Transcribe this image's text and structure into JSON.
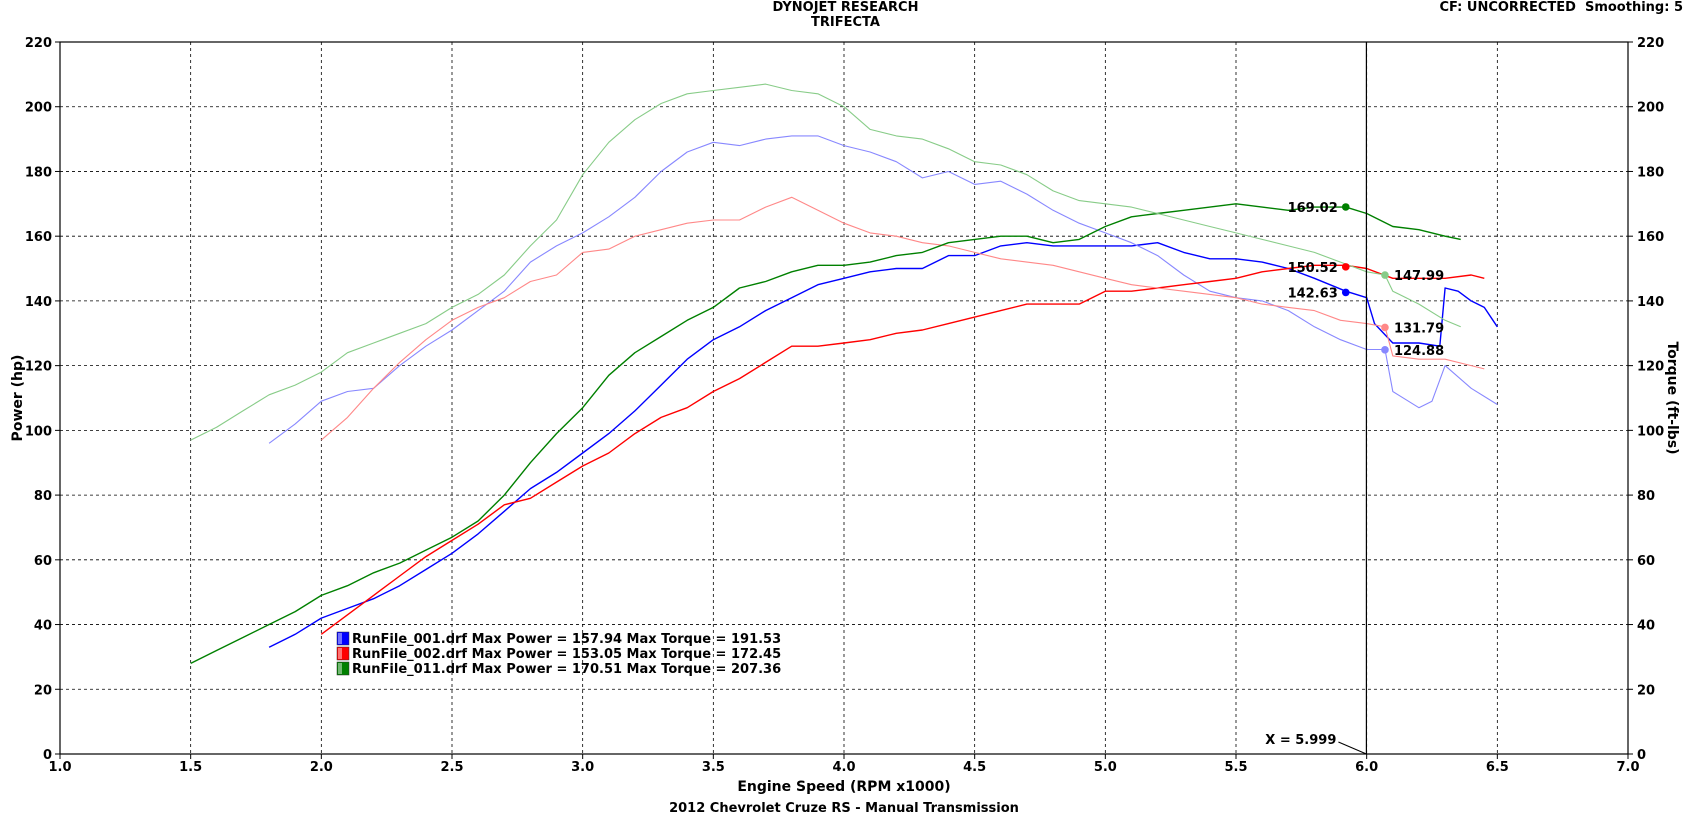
{
  "header": {
    "company": "DYNOJET RESEARCH",
    "product": "TRIFECTA",
    "settings": "CF: UNCORRECTED  Smoothing: 5"
  },
  "footer": {
    "vehicle": "2012 Chevrolet Cruze RS - Manual Transmission"
  },
  "chart_data": {
    "type": "line",
    "title": "",
    "xlabel": "Engine Speed (RPM x1000)",
    "ylabel": "Power (hp)",
    "y2label": "Torque (ft-lbs)",
    "xlim": [
      1.0,
      7.0
    ],
    "ylim": [
      0,
      220
    ],
    "y2lim": [
      0,
      220
    ],
    "x_ticks": [
      "1.0",
      "1.5",
      "2.0",
      "2.5",
      "3.0",
      "3.5",
      "4.0",
      "4.5",
      "5.0",
      "5.5",
      "6.0",
      "6.5",
      "7.0"
    ],
    "y_ticks": [
      "0",
      "20",
      "40",
      "60",
      "80",
      "100",
      "120",
      "140",
      "160",
      "180",
      "200",
      "220"
    ],
    "grid": true,
    "legend_position": "lower-left",
    "cursor": {
      "x": 5.999,
      "label": "X = 5.999"
    },
    "legend": [
      {
        "text": "RunFile_001.drf Max Power = 157.94 Max Torque = 191.53",
        "color": "#0000ff"
      },
      {
        "text": "RunFile_002.drf Max Power = 153.05 Max Torque = 172.45",
        "color": "#ff0000"
      },
      {
        "text": "RunFile_011.drf Max Power = 170.51 Max Torque = 207.36",
        "color": "#008000"
      }
    ],
    "series": [
      {
        "kind": "power",
        "color": "#0000ff",
        "x": [
          1.8,
          1.9,
          2.0,
          2.1,
          2.2,
          2.3,
          2.4,
          2.5,
          2.6,
          2.7,
          2.8,
          2.9,
          3.0,
          3.1,
          3.2,
          3.3,
          3.4,
          3.5,
          3.6,
          3.7,
          3.8,
          3.9,
          4.0,
          4.1,
          4.2,
          4.3,
          4.4,
          4.5,
          4.6,
          4.7,
          4.8,
          4.9,
          5.0,
          5.1,
          5.2,
          5.3,
          5.4,
          5.5,
          5.6,
          5.7,
          5.8,
          5.92,
          6.0,
          6.03,
          6.1,
          6.2,
          6.28,
          6.3,
          6.35,
          6.4,
          6.45,
          6.5
        ],
        "y": [
          33,
          37,
          42,
          45,
          48,
          52,
          57,
          62,
          68,
          75,
          82,
          87,
          93,
          99,
          106,
          114,
          122,
          128,
          132,
          137,
          141,
          145,
          147,
          149,
          150,
          150,
          154,
          154,
          157,
          158,
          157,
          157,
          157,
          157,
          158,
          155,
          153,
          153,
          152,
          150,
          147,
          143,
          141,
          133,
          127,
          127,
          126,
          144,
          143,
          140,
          138,
          132
        ]
      },
      {
        "kind": "torque",
        "color": "#8888ff",
        "x": [
          1.8,
          1.9,
          2.0,
          2.1,
          2.2,
          2.3,
          2.4,
          2.5,
          2.6,
          2.7,
          2.8,
          2.9,
          3.0,
          3.1,
          3.2,
          3.3,
          3.4,
          3.5,
          3.6,
          3.7,
          3.8,
          3.9,
          4.0,
          4.1,
          4.2,
          4.3,
          4.4,
          4.5,
          4.6,
          4.7,
          4.8,
          4.9,
          5.0,
          5.1,
          5.2,
          5.3,
          5.4,
          5.5,
          5.6,
          5.7,
          5.8,
          5.9,
          6.0,
          6.07,
          6.1,
          6.2,
          6.25,
          6.3,
          6.4,
          6.5
        ],
        "y": [
          96,
          102,
          109,
          112,
          113,
          120,
          126,
          131,
          137,
          143,
          152,
          157,
          161,
          166,
          172,
          180,
          186,
          189,
          188,
          190,
          191,
          191,
          188,
          186,
          183,
          178,
          180,
          176,
          177,
          173,
          168,
          164,
          161,
          158,
          154,
          148,
          143,
          141,
          140,
          137,
          132,
          128,
          125,
          125,
          112,
          107,
          109,
          120,
          113,
          108
        ]
      },
      {
        "kind": "power",
        "color": "#ff0000",
        "x": [
          2.0,
          2.1,
          2.2,
          2.3,
          2.4,
          2.5,
          2.6,
          2.7,
          2.8,
          2.9,
          3.0,
          3.1,
          3.2,
          3.3,
          3.4,
          3.5,
          3.6,
          3.7,
          3.8,
          3.9,
          4.0,
          4.1,
          4.2,
          4.3,
          4.4,
          4.5,
          4.6,
          4.7,
          4.8,
          4.9,
          5.0,
          5.1,
          5.2,
          5.3,
          5.4,
          5.5,
          5.6,
          5.7,
          5.8,
          5.92,
          6.0,
          6.1,
          6.2,
          6.3,
          6.4,
          6.45
        ],
        "y": [
          37,
          43,
          49,
          55,
          61,
          66,
          71,
          77,
          79,
          84,
          89,
          93,
          99,
          104,
          107,
          112,
          116,
          121,
          126,
          126,
          127,
          128,
          130,
          131,
          133,
          135,
          137,
          139,
          139,
          139,
          143,
          143,
          144,
          145,
          146,
          147,
          149,
          150,
          151,
          151,
          150,
          147,
          147,
          147,
          148,
          147
        ]
      },
      {
        "kind": "torque",
        "color": "#ff8888",
        "x": [
          2.0,
          2.1,
          2.2,
          2.3,
          2.4,
          2.5,
          2.6,
          2.7,
          2.8,
          2.9,
          3.0,
          3.1,
          3.2,
          3.3,
          3.4,
          3.5,
          3.6,
          3.7,
          3.8,
          3.9,
          4.0,
          4.1,
          4.2,
          4.3,
          4.4,
          4.5,
          4.6,
          4.7,
          4.8,
          4.9,
          5.0,
          5.1,
          5.2,
          5.3,
          5.4,
          5.5,
          5.6,
          5.7,
          5.8,
          5.9,
          6.0,
          6.07,
          6.1,
          6.2,
          6.3,
          6.4,
          6.45
        ],
        "y": [
          97,
          104,
          113,
          121,
          128,
          134,
          138,
          141,
          146,
          148,
          155,
          156,
          160,
          162,
          164,
          165,
          165,
          169,
          172,
          168,
          164,
          161,
          160,
          158,
          157,
          155,
          153,
          152,
          151,
          149,
          147,
          145,
          144,
          143,
          142,
          141,
          139,
          138,
          137,
          134,
          133,
          132,
          123,
          122,
          122,
          120,
          119
        ]
      },
      {
        "kind": "power",
        "color": "#008000",
        "x": [
          1.5,
          1.6,
          1.7,
          1.8,
          1.9,
          2.0,
          2.1,
          2.2,
          2.3,
          2.4,
          2.5,
          2.6,
          2.7,
          2.8,
          2.9,
          3.0,
          3.1,
          3.2,
          3.3,
          3.4,
          3.5,
          3.6,
          3.7,
          3.8,
          3.9,
          4.0,
          4.1,
          4.2,
          4.3,
          4.4,
          4.5,
          4.6,
          4.7,
          4.8,
          4.9,
          5.0,
          5.1,
          5.2,
          5.3,
          5.4,
          5.5,
          5.6,
          5.7,
          5.8,
          5.92,
          6.0,
          6.1,
          6.2,
          6.3,
          6.36
        ],
        "y": [
          28,
          32,
          36,
          40,
          44,
          49,
          52,
          56,
          59,
          63,
          67,
          72,
          80,
          90,
          99,
          107,
          117,
          124,
          129,
          134,
          138,
          144,
          146,
          149,
          151,
          151,
          152,
          154,
          155,
          158,
          159,
          160,
          160,
          158,
          159,
          163,
          166,
          167,
          168,
          169,
          170,
          169,
          168,
          169,
          169,
          167,
          163,
          162,
          160,
          159
        ]
      },
      {
        "kind": "torque",
        "color": "#88cc88",
        "x": [
          1.5,
          1.6,
          1.7,
          1.8,
          1.9,
          2.0,
          2.1,
          2.2,
          2.3,
          2.4,
          2.5,
          2.6,
          2.7,
          2.8,
          2.9,
          3.0,
          3.1,
          3.2,
          3.3,
          3.4,
          3.5,
          3.6,
          3.7,
          3.8,
          3.9,
          4.0,
          4.1,
          4.2,
          4.3,
          4.4,
          4.5,
          4.6,
          4.7,
          4.8,
          4.9,
          5.0,
          5.1,
          5.2,
          5.3,
          5.4,
          5.5,
          5.6,
          5.7,
          5.8,
          5.9,
          6.0,
          6.07,
          6.1,
          6.2,
          6.3,
          6.36
        ],
        "y": [
          97,
          101,
          106,
          111,
          114,
          118,
          124,
          127,
          130,
          133,
          138,
          142,
          148,
          157,
          165,
          179,
          189,
          196,
          201,
          204,
          205,
          206,
          207,
          205,
          204,
          200,
          193,
          191,
          190,
          187,
          183,
          182,
          179,
          174,
          171,
          170,
          169,
          167,
          165,
          163,
          161,
          159,
          157,
          155,
          152,
          149,
          148,
          143,
          139,
          134,
          132
        ]
      }
    ],
    "cursor_values": [
      {
        "x": 5.92,
        "y": 169.02,
        "color": "#008000",
        "label": "169.02"
      },
      {
        "x": 5.92,
        "y": 150.52,
        "color": "#ff0000",
        "label": "150.52"
      },
      {
        "x": 5.92,
        "y": 142.63,
        "color": "#0000ff",
        "label": "142.63"
      },
      {
        "x": 6.07,
        "y": 147.99,
        "color": "#88cc88",
        "label": "147.99"
      },
      {
        "x": 6.07,
        "y": 131.79,
        "color": "#ff8888",
        "label": "131.79"
      },
      {
        "x": 6.07,
        "y": 124.88,
        "color": "#8888ff",
        "label": "124.88"
      }
    ]
  }
}
